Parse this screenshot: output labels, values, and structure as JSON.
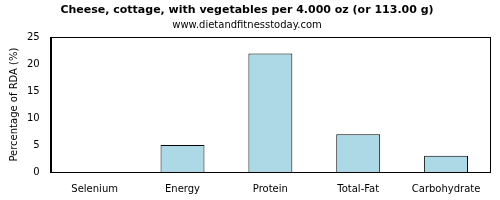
{
  "chart_data": {
    "type": "bar",
    "title": "Cheese, cottage, with vegetables per 4.000 oz (or 113.00 g)",
    "subtitle": "www.dietandfitnesstoday.com",
    "y_label": "Percentage of RDA (%)",
    "categories": [
      "Selenium",
      "Energy",
      "Protein",
      "Total-Fat",
      "Carbohydrate"
    ],
    "values": [
      0,
      5,
      22,
      7,
      3
    ],
    "color": "#add8e6",
    "ylim": [
      0,
      25
    ],
    "yticks": [
      0,
      5,
      10,
      15,
      20,
      25
    ],
    "grid": false
  }
}
